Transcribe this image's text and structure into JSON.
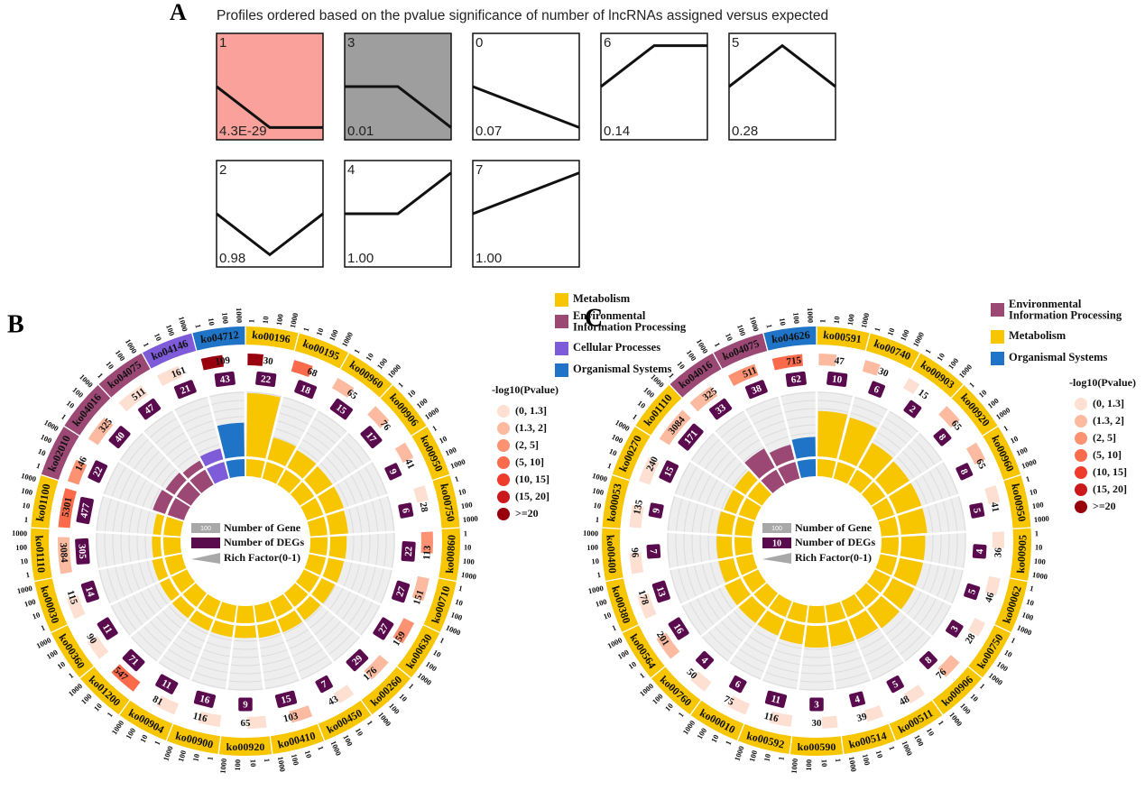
{
  "panel_a": {
    "label": "A",
    "title": "Profiles ordered based on the pvalue significance of number of lncRNAs assigned versus expected",
    "shape_lim": [
      -1.3,
      1.3
    ],
    "profiles": [
      {
        "id": "1",
        "pvalue": "4.3E-29",
        "shape": [
          0,
          -1,
          -1
        ],
        "fill": "#f9a19a"
      },
      {
        "id": "3",
        "pvalue": "0.01",
        "shape": [
          0,
          0,
          -1
        ],
        "fill": "#9e9e9e"
      },
      {
        "id": "0",
        "pvalue": "0.07",
        "shape": [
          0,
          -0.5,
          -1
        ],
        "fill": "#ffffff"
      },
      {
        "id": "6",
        "pvalue": "0.14",
        "shape": [
          0,
          1,
          1
        ],
        "fill": "#ffffff"
      },
      {
        "id": "5",
        "pvalue": "0.28",
        "shape": [
          0,
          1,
          0
        ],
        "fill": "#ffffff"
      },
      {
        "id": "2",
        "pvalue": "0.98",
        "shape": [
          0,
          -1,
          0
        ],
        "fill": "#ffffff"
      },
      {
        "id": "4",
        "pvalue": "1.00",
        "shape": [
          0,
          0,
          1
        ],
        "fill": "#ffffff"
      },
      {
        "id": "7",
        "pvalue": "1.00",
        "shape": [
          0,
          0.5,
          1
        ],
        "fill": "#ffffff"
      }
    ]
  },
  "panel_b": {
    "label": "B",
    "categories": [
      {
        "name": "Metabolism",
        "color": "#f7c600"
      },
      {
        "name": "Environmental\nInformation Processing",
        "color": "#9b4874"
      },
      {
        "name": "Cellular Processes",
        "color": "#7e5bd8"
      },
      {
        "name": "Organismal Systems",
        "color": "#1f74c8"
      }
    ],
    "pvalue_title": "-log10(Pvalue)",
    "pvalue_bins": [
      {
        "label": "(0, 1.3]",
        "color": "#fde0d2"
      },
      {
        "label": "(1.3, 2]",
        "color": "#fcbba1"
      },
      {
        "label": "(2, 5]",
        "color": "#fc9272"
      },
      {
        "label": "(5, 10]",
        "color": "#fb6a4a"
      },
      {
        "label": "(10, 15]",
        "color": "#ef3b2c"
      },
      {
        "label": "(15, 20]",
        "color": "#cb181d"
      },
      {
        "label": ">=20",
        "color": "#99000d"
      }
    ],
    "key": {
      "genes": "Number of Gene",
      "genes_sample": "100",
      "degs": "Number of DEGs",
      "rich": "Rich Factor(0-1)"
    },
    "scale_ticks": [
      1,
      10,
      100,
      1000
    ],
    "rich_lim": [
      0,
      0.75
    ],
    "terms": [
      {
        "id": "ko00196",
        "category": "Metabolism",
        "genes": 30,
        "degs": 22,
        "rich": 0.73,
        "pvalue_color": "#99000d"
      },
      {
        "id": "ko00195",
        "category": "Metabolism",
        "genes": 68,
        "degs": 18,
        "rich": 0.26,
        "pvalue_color": "#fb6a4a"
      },
      {
        "id": "ko00960",
        "category": "Metabolism",
        "genes": 65,
        "degs": 15,
        "rich": 0.23,
        "pvalue_color": "#fcbba1"
      },
      {
        "id": "ko00906",
        "category": "Metabolism",
        "genes": 76,
        "degs": 17,
        "rich": 0.22,
        "pvalue_color": "#fcbba1"
      },
      {
        "id": "ko00950",
        "category": "Metabolism",
        "genes": 41,
        "degs": 9,
        "rich": 0.22,
        "pvalue_color": "#fcbba1"
      },
      {
        "id": "ko00750",
        "category": "Metabolism",
        "genes": 28,
        "degs": 6,
        "rich": 0.21,
        "pvalue_color": "#fde0d2"
      },
      {
        "id": "ko00860",
        "category": "Metabolism",
        "genes": 113,
        "degs": 22,
        "rich": 0.19,
        "pvalue_color": "#fc9272"
      },
      {
        "id": "ko00710",
        "category": "Metabolism",
        "genes": 151,
        "degs": 27,
        "rich": 0.18,
        "pvalue_color": "#fcbba1"
      },
      {
        "id": "ko00630",
        "category": "Metabolism",
        "genes": 159,
        "degs": 27,
        "rich": 0.17,
        "pvalue_color": "#fc9272"
      },
      {
        "id": "ko00260",
        "category": "Metabolism",
        "genes": 176,
        "degs": 29,
        "rich": 0.16,
        "pvalue_color": "#fcbba1"
      },
      {
        "id": "ko00450",
        "category": "Metabolism",
        "genes": 43,
        "degs": 7,
        "rich": 0.16,
        "pvalue_color": "#fde0d2"
      },
      {
        "id": "ko00410",
        "category": "Metabolism",
        "genes": 103,
        "degs": 15,
        "rich": 0.15,
        "pvalue_color": "#fcbba1"
      },
      {
        "id": "ko00920",
        "category": "Metabolism",
        "genes": 65,
        "degs": 9,
        "rich": 0.14,
        "pvalue_color": "#fde0d2"
      },
      {
        "id": "ko00900",
        "category": "Metabolism",
        "genes": 116,
        "degs": 16,
        "rich": 0.14,
        "pvalue_color": "#fde0d2"
      },
      {
        "id": "ko00904",
        "category": "Metabolism",
        "genes": 81,
        "degs": 11,
        "rich": 0.14,
        "pvalue_color": "#fde0d2"
      },
      {
        "id": "ko01200",
        "category": "Metabolism",
        "genes": 547,
        "degs": 71,
        "rich": 0.13,
        "pvalue_color": "#fb6a4a"
      },
      {
        "id": "ko00360",
        "category": "Metabolism",
        "genes": 90,
        "degs": 11,
        "rich": 0.12,
        "pvalue_color": "#fde0d2"
      },
      {
        "id": "ko00030",
        "category": "Metabolism",
        "genes": 115,
        "degs": 14,
        "rich": 0.12,
        "pvalue_color": "#fde0d2"
      },
      {
        "id": "ko01110",
        "category": "Metabolism",
        "genes": 3084,
        "degs": 305,
        "rich": 0.1,
        "pvalue_color": "#fcbba1"
      },
      {
        "id": "ko01100",
        "category": "Metabolism",
        "genes": 5301,
        "degs": 477,
        "rich": 0.09,
        "pvalue_color": "#fb6a4a"
      },
      {
        "id": "ko02010",
        "category": "Environmental\nInformation Processing",
        "genes": 146,
        "degs": 22,
        "rich": 0.15,
        "pvalue_color": "#fc9272"
      },
      {
        "id": "ko04016",
        "category": "Environmental\nInformation Processing",
        "genes": 325,
        "degs": 40,
        "rich": 0.12,
        "pvalue_color": "#fcbba1"
      },
      {
        "id": "ko04075",
        "category": "Environmental\nInformation Processing",
        "genes": 511,
        "degs": 47,
        "rich": 0.09,
        "pvalue_color": "#fde0d2"
      },
      {
        "id": "ko04146",
        "category": "Cellular Processes",
        "genes": 161,
        "degs": 21,
        "rich": 0.13,
        "pvalue_color": "#fde0d2"
      },
      {
        "id": "ko04712",
        "category": "Organismal Systems",
        "genes": 109,
        "degs": 43,
        "rich": 0.39,
        "pvalue_color": "#99000d"
      }
    ]
  },
  "panel_c": {
    "label": "C",
    "categories": [
      {
        "name": "Environmental\nInformation Processing",
        "color": "#9b4874"
      },
      {
        "name": "Metabolism",
        "color": "#f7c600"
      },
      {
        "name": "Organismal Systems",
        "color": "#1f74c8"
      }
    ],
    "pvalue_title": "-log10(Pvalue)",
    "pvalue_bins": [
      {
        "label": "(0, 1.3]",
        "color": "#fde0d2"
      },
      {
        "label": "(1.3, 2]",
        "color": "#fcbba1"
      },
      {
        "label": "(2, 5]",
        "color": "#fc9272"
      },
      {
        "label": "(5, 10]",
        "color": "#fb6a4a"
      },
      {
        "label": "(10, 15]",
        "color": "#ef3b2c"
      },
      {
        "label": "(15, 20]",
        "color": "#cb181d"
      },
      {
        "label": ">=20",
        "color": "#99000d"
      }
    ],
    "key": {
      "genes": "Number of Gene",
      "genes_sample": "100",
      "degs": "Number of DEGs",
      "degs_sample": "10",
      "rich": "Rich Factor(0-1)"
    },
    "scale_ticks": [
      1,
      10,
      100,
      1000
    ],
    "rich_lim": [
      0,
      0.3
    ],
    "terms": [
      {
        "id": "ko00591",
        "category": "Metabolism",
        "genes": 47,
        "degs": 10,
        "rich": 0.21,
        "pvalue_color": "#fcbba1"
      },
      {
        "id": "ko00740",
        "category": "Metabolism",
        "genes": 30,
        "degs": 6,
        "rich": 0.2,
        "pvalue_color": "#fcbba1"
      },
      {
        "id": "ko00903",
        "category": "Metabolism",
        "genes": 15,
        "degs": 2,
        "rich": 0.13,
        "pvalue_color": "#fde0d2"
      },
      {
        "id": "ko00920",
        "category": "Metabolism",
        "genes": 65,
        "degs": 8,
        "rich": 0.12,
        "pvalue_color": "#fcbba1"
      },
      {
        "id": "ko00960",
        "category": "Metabolism",
        "genes": 65,
        "degs": 8,
        "rich": 0.12,
        "pvalue_color": "#fcbba1"
      },
      {
        "id": "ko00950",
        "category": "Metabolism",
        "genes": 41,
        "degs": 5,
        "rich": 0.12,
        "pvalue_color": "#fde0d2"
      },
      {
        "id": "ko00905",
        "category": "Metabolism",
        "genes": 36,
        "degs": 4,
        "rich": 0.11,
        "pvalue_color": "#fde0d2"
      },
      {
        "id": "ko00062",
        "category": "Metabolism",
        "genes": 46,
        "degs": 5,
        "rich": 0.11,
        "pvalue_color": "#fde0d2"
      },
      {
        "id": "ko00750",
        "category": "Metabolism",
        "genes": 28,
        "degs": 3,
        "rich": 0.11,
        "pvalue_color": "#fde0d2"
      },
      {
        "id": "ko00906",
        "category": "Metabolism",
        "genes": 76,
        "degs": 8,
        "rich": 0.11,
        "pvalue_color": "#fcbba1"
      },
      {
        "id": "ko00511",
        "category": "Metabolism",
        "genes": 48,
        "degs": 5,
        "rich": 0.1,
        "pvalue_color": "#fde0d2"
      },
      {
        "id": "ko00514",
        "category": "Metabolism",
        "genes": 39,
        "degs": 4,
        "rich": 0.1,
        "pvalue_color": "#fde0d2"
      },
      {
        "id": "ko00590",
        "category": "Metabolism",
        "genes": 30,
        "degs": 3,
        "rich": 0.1,
        "pvalue_color": "#fde0d2"
      },
      {
        "id": "ko00592",
        "category": "Metabolism",
        "genes": 116,
        "degs": 11,
        "rich": 0.09,
        "pvalue_color": "#fde0d2"
      },
      {
        "id": "ko00010",
        "category": "Metabolism",
        "genes": 75,
        "degs": 6,
        "rich": 0.08,
        "pvalue_color": "#fde0d2"
      },
      {
        "id": "ko00760",
        "category": "Metabolism",
        "genes": 50,
        "degs": 4,
        "rich": 0.08,
        "pvalue_color": "#fde0d2"
      },
      {
        "id": "ko00564",
        "category": "Metabolism",
        "genes": 201,
        "degs": 16,
        "rich": 0.08,
        "pvalue_color": "#fcbba1"
      },
      {
        "id": "ko00380",
        "category": "Metabolism",
        "genes": 178,
        "degs": 13,
        "rich": 0.07,
        "pvalue_color": "#fde0d2"
      },
      {
        "id": "ko00400",
        "category": "Metabolism",
        "genes": 96,
        "degs": 7,
        "rich": 0.07,
        "pvalue_color": "#fde0d2"
      },
      {
        "id": "ko00053",
        "category": "Metabolism",
        "genes": 135,
        "degs": 9,
        "rich": 0.07,
        "pvalue_color": "#fde0d2"
      },
      {
        "id": "ko00270",
        "category": "Metabolism",
        "genes": 240,
        "degs": 15,
        "rich": 0.06,
        "pvalue_color": "#fde0d2"
      },
      {
        "id": "ko01110",
        "category": "Metabolism",
        "genes": 3084,
        "degs": 171,
        "rich": 0.06,
        "pvalue_color": "#fcbba1"
      },
      {
        "id": "ko04016",
        "category": "Environmental\nInformation Processing",
        "genes": 325,
        "degs": 33,
        "rich": 0.1,
        "pvalue_color": "#fcbba1"
      },
      {
        "id": "ko04075",
        "category": "Environmental\nInformation Processing",
        "genes": 511,
        "degs": 38,
        "rich": 0.07,
        "pvalue_color": "#fc9272"
      },
      {
        "id": "ko04626",
        "category": "Organismal Systems",
        "genes": 715,
        "degs": 62,
        "rich": 0.09,
        "pvalue_color": "#fb6a4a"
      }
    ]
  }
}
